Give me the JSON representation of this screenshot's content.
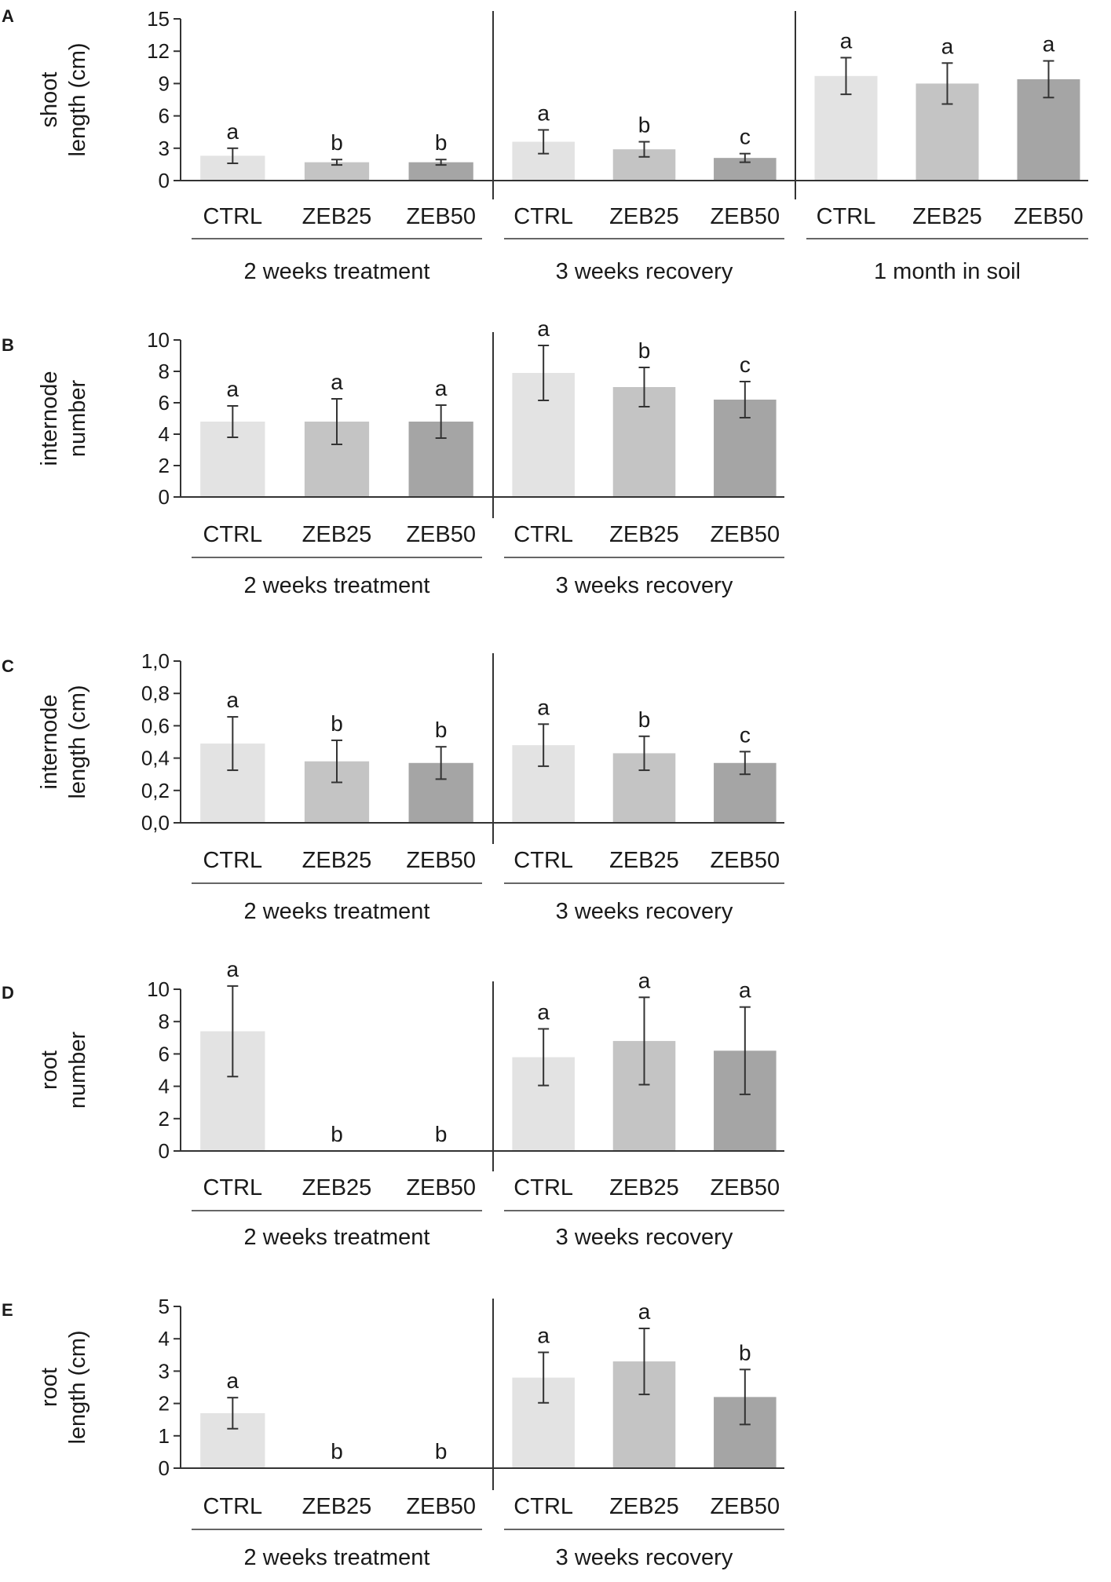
{
  "chart_data": [
    {
      "type": "bar",
      "panel": "A",
      "ylabel": [
        "shoot",
        "length (cm)"
      ],
      "ylim": [
        0,
        15
      ],
      "yticks": [
        "0",
        "3",
        "6",
        "9",
        "12",
        "15"
      ],
      "groups": [
        {
          "label": "2 weeks treatment",
          "categories": [
            "CTRL",
            "ZEB25",
            "ZEB50"
          ],
          "values": [
            2.3,
            1.7,
            1.7
          ],
          "errors": [
            0.7,
            0.25,
            0.25
          ],
          "letters": [
            "a",
            "b",
            "b"
          ]
        },
        {
          "label": "3 weeks recovery",
          "categories": [
            "CTRL",
            "ZEB25",
            "ZEB50"
          ],
          "values": [
            3.6,
            2.9,
            2.1
          ],
          "errors": [
            1.1,
            0.7,
            0.4
          ],
          "letters": [
            "a",
            "b",
            "c"
          ]
        },
        {
          "label": "1 month in soil",
          "categories": [
            "CTRL",
            "ZEB25",
            "ZEB50"
          ],
          "values": [
            9.7,
            9.0,
            9.4
          ],
          "errors": [
            1.7,
            1.9,
            1.7
          ],
          "letters": [
            "a",
            "a",
            "a"
          ]
        }
      ]
    },
    {
      "type": "bar",
      "panel": "B",
      "ylabel": [
        "internode",
        "number"
      ],
      "ylim": [
        0,
        10
      ],
      "yticks": [
        "0",
        "2",
        "4",
        "6",
        "8",
        "10"
      ],
      "groups": [
        {
          "label": "2 weeks treatment",
          "categories": [
            "CTRL",
            "ZEB25",
            "ZEB50"
          ],
          "values": [
            4.8,
            4.8,
            4.8
          ],
          "errors": [
            1.0,
            1.45,
            1.05
          ],
          "letters": [
            "a",
            "a",
            "a"
          ]
        },
        {
          "label": "3 weeks recovery",
          "categories": [
            "CTRL",
            "ZEB25",
            "ZEB50"
          ],
          "values": [
            7.9,
            7.0,
            6.2
          ],
          "errors": [
            1.75,
            1.25,
            1.15
          ],
          "letters": [
            "a",
            "b",
            "c"
          ]
        }
      ]
    },
    {
      "type": "bar",
      "panel": "C",
      "ylabel": [
        "internode",
        "length (cm)"
      ],
      "ylim": [
        0,
        1.0
      ],
      "yticks": [
        "0,0",
        "0,2",
        "0,4",
        "0,6",
        "0,8",
        "1,0"
      ],
      "groups": [
        {
          "label": "2 weeks treatment",
          "categories": [
            "CTRL",
            "ZEB25",
            "ZEB50"
          ],
          "values": [
            0.49,
            0.38,
            0.37
          ],
          "errors": [
            0.165,
            0.13,
            0.1
          ],
          "letters": [
            "a",
            "b",
            "b"
          ]
        },
        {
          "label": "3 weeks recovery",
          "categories": [
            "CTRL",
            "ZEB25",
            "ZEB50"
          ],
          "values": [
            0.48,
            0.43,
            0.37
          ],
          "errors": [
            0.13,
            0.105,
            0.07
          ],
          "letters": [
            "a",
            "b",
            "c"
          ]
        }
      ]
    },
    {
      "type": "bar",
      "panel": "D",
      "ylabel": [
        "root",
        "number"
      ],
      "ylim": [
        0,
        10
      ],
      "yticks": [
        "0",
        "2",
        "4",
        "6",
        "8",
        "10"
      ],
      "groups": [
        {
          "label": "2 weeks treatment",
          "categories": [
            "CTRL",
            "ZEB25",
            "ZEB50"
          ],
          "values": [
            7.4,
            0,
            0
          ],
          "errors": [
            2.8,
            0,
            0
          ],
          "letters": [
            "a",
            "b",
            "b"
          ]
        },
        {
          "label": "3 weeks recovery",
          "categories": [
            "CTRL",
            "ZEB25",
            "ZEB50"
          ],
          "values": [
            5.8,
            6.8,
            6.2
          ],
          "errors": [
            1.75,
            2.7,
            2.7
          ],
          "letters": [
            "a",
            "a",
            "a"
          ]
        }
      ]
    },
    {
      "type": "bar",
      "panel": "E",
      "ylabel": [
        "root",
        "length (cm)"
      ],
      "ylim": [
        0,
        5
      ],
      "yticks": [
        "0",
        "1",
        "2",
        "3",
        "4",
        "5"
      ],
      "groups": [
        {
          "label": "2 weeks treatment",
          "categories": [
            "CTRL",
            "ZEB25",
            "ZEB50"
          ],
          "values": [
            1.7,
            0,
            0
          ],
          "errors": [
            0.48,
            0,
            0
          ],
          "letters": [
            "a",
            "b",
            "b"
          ]
        },
        {
          "label": "3 weeks recovery",
          "categories": [
            "CTRL",
            "ZEB25",
            "ZEB50"
          ],
          "values": [
            2.8,
            3.3,
            2.2
          ],
          "errors": [
            0.78,
            1.02,
            0.85
          ],
          "letters": [
            "a",
            "a",
            "b"
          ]
        }
      ]
    }
  ],
  "colors": {
    "bar_shades": [
      "#e3e3e3",
      "#c4c4c4",
      "#a5a5a5"
    ],
    "axis": "#333333",
    "error_bar": "#333333"
  }
}
